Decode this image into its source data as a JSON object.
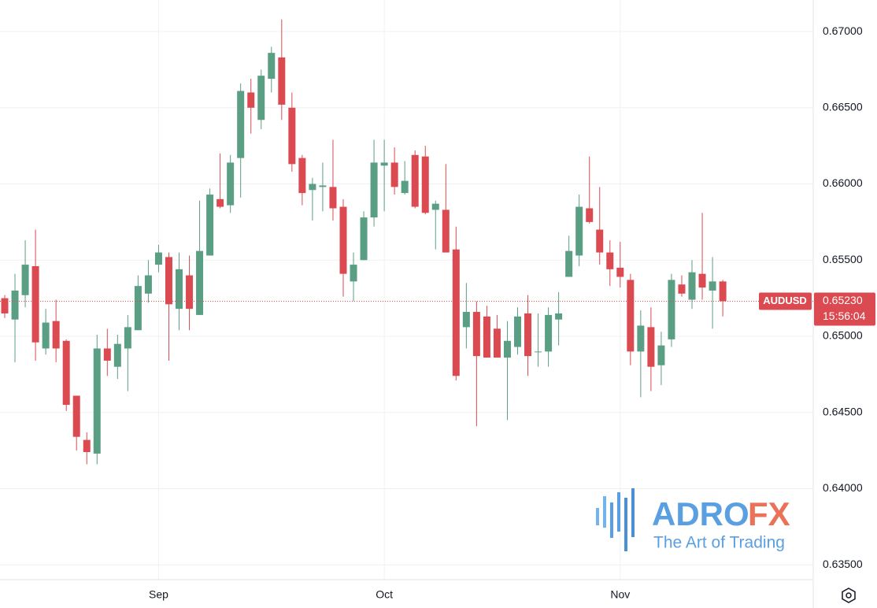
{
  "chart_data": {
    "type": "candlestick",
    "symbol": "AUDUSD",
    "last_price": {
      "value": 0.6523,
      "label": "0.65230"
    },
    "countdown": "15:56:04",
    "watermark": {
      "brand_left": "ADRO",
      "brand_right": "FX",
      "tagline": "The Art of Trading"
    },
    "categories": [
      null,
      null,
      null,
      null,
      null,
      null,
      null,
      null,
      null,
      null,
      null,
      null,
      null,
      null,
      null,
      "Sep",
      null,
      null,
      null,
      null,
      null,
      null,
      null,
      null,
      null,
      null,
      null,
      null,
      null,
      null,
      null,
      null,
      null,
      null,
      null,
      null,
      null,
      "Oct",
      null,
      null,
      null,
      null,
      null,
      null,
      null,
      null,
      null,
      null,
      null,
      null,
      null,
      null,
      null,
      null,
      null,
      null,
      null,
      null,
      null,
      null,
      "Nov",
      null,
      null,
      null,
      null,
      null,
      null,
      null,
      null,
      null,
      null
    ],
    "series": [
      {
        "name": "open",
        "values": [
          0.6525,
          0.6511,
          0.6527,
          0.6546,
          0.6492,
          0.651,
          0.6497,
          0.6461,
          0.6432,
          0.6423,
          0.6492,
          0.648,
          0.6492,
          0.6504,
          0.6528,
          0.6547,
          0.6552,
          0.6518,
          0.654,
          0.6514,
          0.6553,
          0.659,
          0.6586,
          0.6617,
          0.666,
          0.6642,
          0.6669,
          0.6683,
          0.665,
          0.6617,
          0.6596,
          0.6598,
          0.6598,
          0.6585,
          0.6536,
          0.655,
          0.6578,
          0.6612,
          0.6614,
          0.6594,
          0.6619,
          0.6618,
          0.6583,
          0.6583,
          0.6557,
          0.6506,
          0.6516,
          0.6513,
          0.6505,
          0.6486,
          0.6493,
          0.6515,
          0.649,
          0.649,
          0.6511,
          0.6539,
          0.6553,
          0.6584,
          0.657,
          0.6555,
          0.6545,
          0.6537,
          0.649,
          0.6506,
          0.6481,
          0.6498,
          0.6534,
          0.6524,
          0.6541,
          0.653,
          0.6536
        ]
      },
      {
        "name": "high",
        "values": [
          0.6527,
          0.6541,
          0.6563,
          0.657,
          0.6518,
          0.6524,
          0.6498,
          0.6461,
          0.6437,
          0.6501,
          0.6505,
          0.6501,
          0.6514,
          0.654,
          0.655,
          0.656,
          0.6555,
          0.6555,
          0.6553,
          0.6589,
          0.6597,
          0.662,
          0.6619,
          0.6666,
          0.6669,
          0.6675,
          0.669,
          0.6708,
          0.666,
          0.6619,
          0.6604,
          0.6614,
          0.6629,
          0.659,
          0.6555,
          0.6582,
          0.6629,
          0.6629,
          0.6624,
          0.6615,
          0.6622,
          0.6625,
          0.6589,
          0.6613,
          0.6572,
          0.6535,
          0.6523,
          0.652,
          0.6514,
          0.651,
          0.6519,
          0.6527,
          0.6515,
          0.6519,
          0.6529,
          0.6566,
          0.6593,
          0.6618,
          0.6598,
          0.6563,
          0.6562,
          0.6541,
          0.6517,
          0.6519,
          0.6503,
          0.6541,
          0.654,
          0.655,
          0.6581,
          0.6552,
          0.6537
        ]
      },
      {
        "name": "low",
        "values": [
          0.6512,
          0.6483,
          0.6519,
          0.6484,
          0.6488,
          0.6483,
          0.6451,
          0.6425,
          0.6416,
          0.6416,
          0.6474,
          0.6472,
          0.6464,
          0.6504,
          0.6522,
          0.6542,
          0.6484,
          0.6504,
          0.6504,
          0.6514,
          0.6553,
          0.6584,
          0.6581,
          0.6591,
          0.6633,
          0.6636,
          0.666,
          0.6642,
          0.6608,
          0.6586,
          0.6576,
          0.6582,
          0.6576,
          0.6526,
          0.6523,
          0.655,
          0.6572,
          0.6582,
          0.6593,
          0.6593,
          0.6584,
          0.658,
          0.6557,
          0.6555,
          0.6471,
          0.6492,
          0.6441,
          0.6486,
          0.6486,
          0.6445,
          0.6488,
          0.6474,
          0.648,
          0.648,
          0.6494,
          0.6539,
          0.6546,
          0.6574,
          0.6547,
          0.6533,
          0.6532,
          0.6481,
          0.646,
          0.6464,
          0.6468,
          0.6493,
          0.6526,
          0.6518,
          0.6524,
          0.6505,
          0.6513
        ]
      },
      {
        "name": "close",
        "values": [
          0.6515,
          0.653,
          0.6547,
          0.6496,
          0.6509,
          0.6492,
          0.6455,
          0.6434,
          0.6424,
          0.6492,
          0.6484,
          0.6495,
          0.6506,
          0.6533,
          0.654,
          0.6555,
          0.6521,
          0.6544,
          0.6518,
          0.6556,
          0.6593,
          0.6585,
          0.6614,
          0.6661,
          0.665,
          0.6671,
          0.6686,
          0.6652,
          0.6613,
          0.6594,
          0.66,
          0.6599,
          0.6584,
          0.6541,
          0.6547,
          0.6578,
          0.6614,
          0.6614,
          0.6598,
          0.6602,
          0.6585,
          0.6581,
          0.6587,
          0.6555,
          0.6474,
          0.6516,
          0.6487,
          0.6486,
          0.6486,
          0.6497,
          0.6513,
          0.6487,
          0.649,
          0.6514,
          0.6515,
          0.6556,
          0.6585,
          0.6575,
          0.6555,
          0.6544,
          0.6539,
          0.649,
          0.6507,
          0.648,
          0.6494,
          0.6537,
          0.6528,
          0.6542,
          0.6532,
          0.6536,
          0.6523
        ]
      }
    ],
    "up_color": "#5a9e84",
    "down_color": "#dc4a51",
    "ylim": [
      0.63408,
      0.67207
    ],
    "yticks": [
      {
        "value": 0.635,
        "label": "0.63500"
      },
      {
        "value": 0.64,
        "label": "0.64000"
      },
      {
        "value": 0.645,
        "label": "0.64500"
      },
      {
        "value": 0.65,
        "label": "0.65000"
      },
      {
        "value": 0.655,
        "label": "0.65500"
      },
      {
        "value": 0.66,
        "label": "0.66000"
      },
      {
        "value": 0.665,
        "label": "0.66500"
      },
      {
        "value": 0.67,
        "label": "0.67000"
      }
    ],
    "grid": true
  }
}
